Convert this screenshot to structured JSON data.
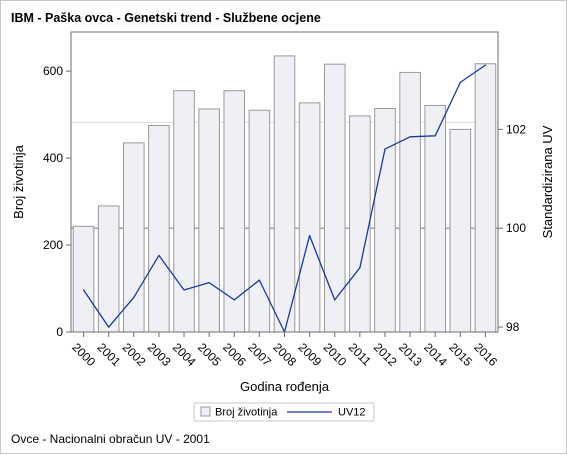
{
  "chart_data": {
    "type": "bar",
    "title": "IBM - Paška ovca - Genetski trend - Službene ocjene",
    "footnote": "Ovce - Nacionalni obračun UV - 2001",
    "xlabel": "Godina rođenja",
    "ylabel": "Broj životinja",
    "y2label": "Standardizirana UV",
    "categories": [
      "2000",
      "2001",
      "2002",
      "2003",
      "2004",
      "2005",
      "2006",
      "2007",
      "2008",
      "2009",
      "2010",
      "2011",
      "2012",
      "2013",
      "2014",
      "2015",
      "2016"
    ],
    "ylim": [
      0,
      690
    ],
    "yticks": [
      0,
      200,
      400,
      600
    ],
    "y2lim": [
      97.9,
      103.97
    ],
    "y2ticks": [
      98,
      100,
      102
    ],
    "y2_reference_line": 100,
    "y_reference_line": 482,
    "series": [
      {
        "name": "Broj životinja",
        "type": "bar",
        "axis": "left",
        "color": "#eef0f6",
        "stroke": "#9a9a9a",
        "values": [
          243,
          290,
          435,
          475,
          555,
          513,
          555,
          510,
          635,
          527,
          616,
          497,
          514,
          597,
          521,
          466,
          617
        ]
      },
      {
        "name": "UV12",
        "type": "line",
        "axis": "right",
        "color": "#1a3a9c",
        "values": [
          98.75,
          98.0,
          98.6,
          99.45,
          98.75,
          98.9,
          98.55,
          98.95,
          97.9,
          99.85,
          98.55,
          99.2,
          101.6,
          101.85,
          101.87,
          102.95,
          103.3
        ]
      }
    ],
    "legend": {
      "position": "bottom",
      "entries": [
        "Broj životinja",
        "UV12"
      ]
    }
  }
}
